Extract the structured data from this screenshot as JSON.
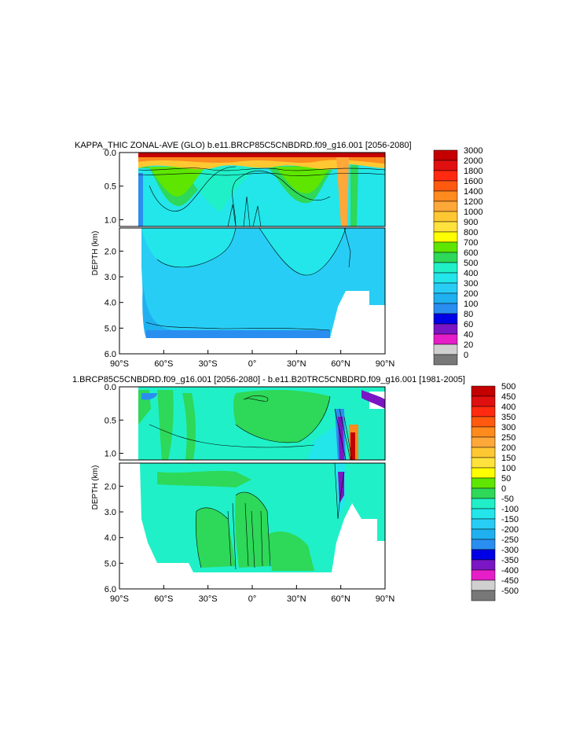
{
  "chart_data": [
    {
      "type": "heatmap",
      "title": "KAPPA_THIC ZONAL-AVE (GLO) b.e11.BRCP85C5CNBDRD.f09_g16.001 [2056-2080]",
      "xlabel": "",
      "ylabel": "DEPTH (km)",
      "xlim": [
        -90,
        90
      ],
      "ylim": [
        0,
        6.0
      ],
      "x_ticks": [
        "90°S",
        "60°S",
        "30°S",
        "0°",
        "30°N",
        "60°N",
        "90°N"
      ],
      "y_ticks_upper": [
        "0.0",
        "0.5",
        "1.0"
      ],
      "y_ticks_lower": [
        "2.0",
        "3.0",
        "4.0",
        "5.0",
        "6.0"
      ],
      "colorbar": {
        "levels": [
          "3000",
          "2000",
          "1800",
          "1600",
          "1400",
          "1200",
          "1000",
          "900",
          "800",
          "700",
          "600",
          "500",
          "400",
          "300",
          "200",
          "100",
          "80",
          "60",
          "40",
          "20",
          "0"
        ],
        "colors": [
          "#c40000",
          "#e01010",
          "#ff2a10",
          "#ff5a10",
          "#ff8a1e",
          "#ffa83a",
          "#ffc832",
          "#ffe23c",
          "#ffff00",
          "#5ee600",
          "#2ed858",
          "#20f0c8",
          "#22e6ea",
          "#28cdf5",
          "#1fb0f0",
          "#2a8ef0",
          "#0000e6",
          "#7a16c4",
          "#e61ec8",
          "#d0d0d0",
          "#787878"
        ]
      }
    },
    {
      "type": "heatmap",
      "title": "1.BRCP85C5CNBDRD.f09_g16.001 [2056-2080] - b.e11.B20TRC5CNBDRD.f09_g16.001 [1981-2005]",
      "xlabel": "",
      "ylabel": "DEPTH (km)",
      "xlim": [
        -90,
        90
      ],
      "ylim": [
        0,
        6.0
      ],
      "x_ticks": [
        "90°S",
        "60°S",
        "30°S",
        "0°",
        "30°N",
        "60°N",
        "90°N"
      ],
      "y_ticks_upper": [
        "0.0",
        "0.5",
        "1.0"
      ],
      "y_ticks_lower": [
        "2.0",
        "3.0",
        "4.0",
        "5.0",
        "6.0"
      ],
      "colorbar": {
        "levels": [
          "500",
          "450",
          "400",
          "350",
          "300",
          "250",
          "200",
          "150",
          "100",
          "50",
          "0",
          "-50",
          "-100",
          "-150",
          "-200",
          "-250",
          "-300",
          "-350",
          "-400",
          "-450",
          "-500"
        ],
        "colors": [
          "#c40000",
          "#e01010",
          "#ff2a10",
          "#ff5a10",
          "#ff8a1e",
          "#ffa83a",
          "#ffc832",
          "#ffe23c",
          "#ffff00",
          "#5ee600",
          "#2ed858",
          "#20f0c8",
          "#22e6ea",
          "#28cdf5",
          "#1fb0f0",
          "#2a8ef0",
          "#0000e6",
          "#7a16c4",
          "#e61ec8",
          "#d0d0d0",
          "#787878"
        ]
      }
    }
  ]
}
